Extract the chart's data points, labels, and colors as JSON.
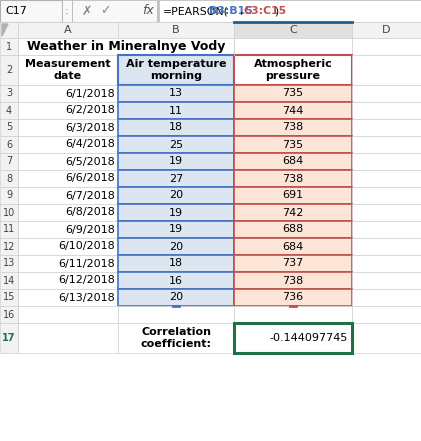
{
  "title_bar_text": "C17",
  "col_headers": [
    "A",
    "B",
    "C",
    "D"
  ],
  "main_title": "Weather in Mineralnye Vody",
  "header_row": [
    "Measurement\ndate",
    "Air temperature\nmorning",
    "Atmospheric\npressure"
  ],
  "dates": [
    "6/1/2018",
    "6/2/2018",
    "6/3/2018",
    "6/4/2018",
    "6/5/2018",
    "6/6/2018",
    "6/7/2018",
    "6/8/2018",
    "6/9/2018",
    "6/10/2018",
    "6/11/2018",
    "6/12/2018",
    "6/13/2018"
  ],
  "temp": [
    "13",
    "11",
    "18",
    "25",
    "19",
    "27",
    "20",
    "19",
    "19",
    "20",
    "18",
    "16",
    "20"
  ],
  "pressure": [
    "735",
    "744",
    "738",
    "735",
    "684",
    "738",
    "691",
    "742",
    "688",
    "684",
    "737",
    "738",
    "736"
  ],
  "corr_label": "Correlation\ncoefficient:",
  "corr_value": "-0.144097745",
  "bg_color": "#ffffff",
  "row_num_bg": "#f2f2f2",
  "col_header_bg": "#f2f2f2",
  "col_c_header_bg": "#e0e0e0",
  "col_b_data_bg": "#dce6f1",
  "col_c_data_bg": "#fce4d6",
  "corr_cell_border": "#1e7145",
  "col_b_border": "#4472c4",
  "col_c_border": "#c0504d",
  "col_c_header_border_top": "#2e5f8a",
  "formula_b_color": "#4472c4",
  "formula_c_color": "#c0504d",
  "grid_color": "#d0d0d0",
  "black": "#000000",
  "row17_num_color": "#1e7145"
}
